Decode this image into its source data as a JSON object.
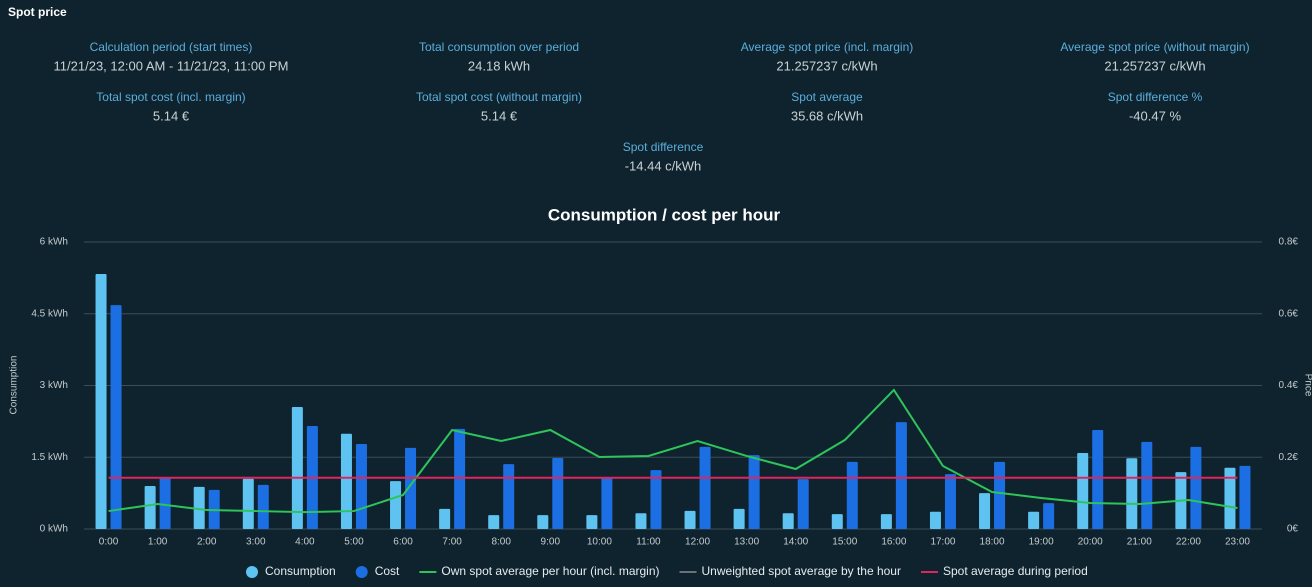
{
  "header": {
    "title": "Spot price"
  },
  "stats": [
    {
      "label": "Calculation period (start times)",
      "value": "11/21/23, 12:00 AM - 11/21/23, 11:00 PM"
    },
    {
      "label": "Total consumption over period",
      "value": "24.18 kWh"
    },
    {
      "label": "Average spot price (incl. margin)",
      "value": "21.257237 c/kWh"
    },
    {
      "label": "Average spot price (without margin)",
      "value": "21.257237 c/kWh"
    },
    {
      "label": "Total spot cost (incl. margin)",
      "value": "5.14 €"
    },
    {
      "label": "Total spot cost (without margin)",
      "value": "5.14 €"
    },
    {
      "label": "Spot average",
      "value": "35.68 c/kWh"
    },
    {
      "label": "Spot difference %",
      "value": "-40.47 %"
    },
    {
      "label": "Spot difference",
      "value": "-14.44 c/kWh"
    }
  ],
  "chart_data": {
    "type": "bar",
    "title": "Consumption / cost per hour",
    "y_label": "Consumption",
    "y2_label": "Price",
    "categories": [
      "0:00",
      "1:00",
      "2:00",
      "3:00",
      "4:00",
      "5:00",
      "6:00",
      "7:00",
      "8:00",
      "9:00",
      "10:00",
      "11:00",
      "12:00",
      "13:00",
      "14:00",
      "15:00",
      "16:00",
      "17:00",
      "18:00",
      "19:00",
      "20:00",
      "21:00",
      "22:00",
      "23:00"
    ],
    "ylim": [
      0,
      6
    ],
    "yticks": [
      {
        "value": 0,
        "label": "0 kWh"
      },
      {
        "value": 1.5,
        "label": "1.5 kWh"
      },
      {
        "value": 3,
        "label": "3 kWh"
      },
      {
        "value": 4.5,
        "label": "4.5 kWh"
      },
      {
        "value": 6,
        "label": "6 kWh"
      }
    ],
    "y2lim": [
      0,
      0.8
    ],
    "y2ticks": [
      {
        "value": 0,
        "label": "0€"
      },
      {
        "value": 0.2,
        "label": "0.2€"
      },
      {
        "value": 0.4,
        "label": "0.4€"
      },
      {
        "value": 0.6,
        "label": "0.6€"
      },
      {
        "value": 0.8,
        "label": "0.8€"
      }
    ],
    "y3lim": [
      0,
      200
    ],
    "grid": true,
    "series": [
      {
        "name": "Consumption",
        "type": "bar",
        "color": "#5fc3f2",
        "values": [
          5.33,
          0.9,
          0.88,
          1.05,
          2.55,
          1.99,
          1.0,
          0.42,
          0.29,
          0.29,
          0.29,
          0.33,
          0.38,
          0.42,
          0.33,
          0.31,
          0.31,
          0.36,
          0.75,
          0.36,
          1.59,
          1.48,
          1.19,
          1.28
        ]
      },
      {
        "name": "Cost",
        "type": "bar",
        "axis": "y2",
        "color": "#1c6fe3",
        "values": [
          0.624,
          0.145,
          0.109,
          0.123,
          0.287,
          0.237,
          0.226,
          0.279,
          0.181,
          0.198,
          0.145,
          0.164,
          0.229,
          0.206,
          0.139,
          0.187,
          0.298,
          0.153,
          0.187,
          0.072,
          0.276,
          0.243,
          0.229,
          0.176
        ]
      },
      {
        "name": "Own spot average per hour (incl. margin)",
        "type": "line",
        "axis": "y3",
        "color": "#2fc45a",
        "values": [
          12.5,
          17.4,
          13.2,
          12.5,
          11.8,
          12.5,
          23.7,
          69.0,
          61.3,
          69.0,
          50.2,
          50.9,
          61.3,
          50.9,
          41.8,
          62.0,
          96.9,
          43.9,
          25.8,
          21.6,
          18.1,
          17.4,
          20.2,
          14.6
        ]
      },
      {
        "name": "Unweighted spot average by the hour",
        "type": "line",
        "axis": "y3",
        "color": "#6b7378",
        "hidden": true
      },
      {
        "name": "Spot average during period",
        "type": "line",
        "axis": "y3",
        "color": "#e0245e",
        "value": 35.68
      }
    ]
  }
}
